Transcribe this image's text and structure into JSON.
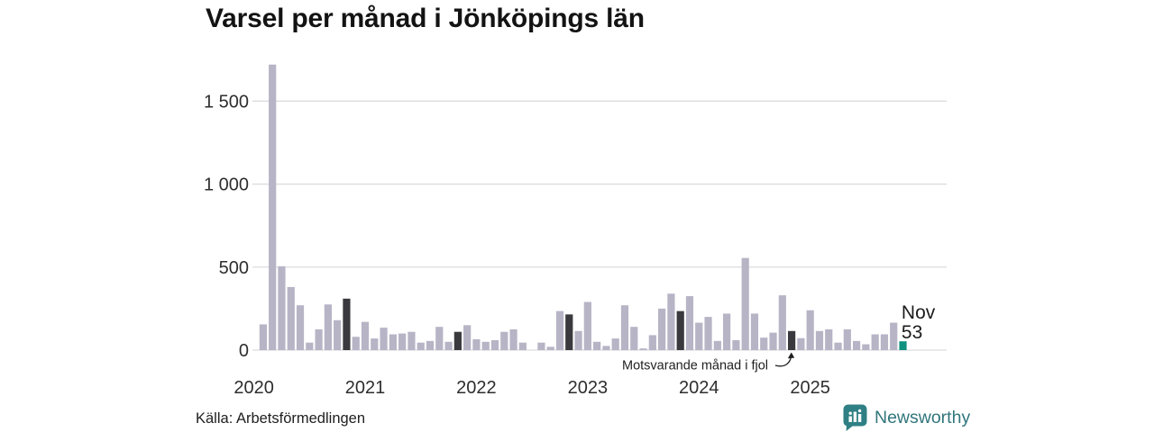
{
  "header": {
    "title": "Varsel per månad i Jönköpings län"
  },
  "footer": {
    "source": "Källa: Arbetsförmedlingen",
    "brand": "Newsworthy"
  },
  "colors": {
    "bar": "#b7b4c6",
    "bar_dark": "#3a3a3e",
    "bar_highlight": "#10917f",
    "grid": "#dcdce0",
    "axis_label": "#2e2e2e",
    "annotation": "#1f1f1f",
    "last_label": "#1b1b1b",
    "brand_teal": "#2f8084"
  },
  "chart_data": {
    "type": "bar",
    "title": "Varsel per månad i Jönköpings län",
    "xlabel": "",
    "ylabel": "",
    "ylim": [
      0,
      1750
    ],
    "grid": "horizontal",
    "yticks": [
      0,
      500,
      1000,
      1500
    ],
    "ytick_labels": [
      "0",
      "500",
      "1 000",
      "1 500"
    ],
    "year_tick_labels": [
      "2020",
      "2021",
      "2022",
      "2023",
      "2024",
      "2025"
    ],
    "months": [
      "2020-01",
      "2020-02",
      "2020-03",
      "2020-04",
      "2020-05",
      "2020-06",
      "2020-07",
      "2020-08",
      "2020-09",
      "2020-10",
      "2020-11",
      "2020-12",
      "2021-01",
      "2021-02",
      "2021-03",
      "2021-04",
      "2021-05",
      "2021-06",
      "2021-07",
      "2021-08",
      "2021-09",
      "2021-10",
      "2021-11",
      "2021-12",
      "2022-01",
      "2022-02",
      "2022-03",
      "2022-04",
      "2022-05",
      "2022-06",
      "2022-07",
      "2022-08",
      "2022-09",
      "2022-10",
      "2022-11",
      "2022-12",
      "2023-01",
      "2023-02",
      "2023-03",
      "2023-04",
      "2023-05",
      "2023-06",
      "2023-07",
      "2023-08",
      "2023-09",
      "2023-10",
      "2023-11",
      "2023-12",
      "2024-01",
      "2024-02",
      "2024-03",
      "2024-04",
      "2024-05",
      "2024-06",
      "2024-07",
      "2024-08",
      "2024-09",
      "2024-10",
      "2024-11",
      "2024-12",
      "2025-01",
      "2025-02",
      "2025-03",
      "2025-04",
      "2025-05",
      "2025-06",
      "2025-07",
      "2025-08",
      "2025-09",
      "2025-10",
      "2025-11"
    ],
    "values": [
      0,
      155,
      1720,
      505,
      380,
      270,
      45,
      125,
      275,
      180,
      310,
      80,
      170,
      70,
      135,
      95,
      100,
      110,
      45,
      55,
      140,
      50,
      110,
      150,
      65,
      50,
      60,
      110,
      125,
      45,
      0,
      45,
      20,
      235,
      215,
      115,
      290,
      50,
      25,
      70,
      270,
      140,
      10,
      90,
      250,
      340,
      235,
      325,
      165,
      200,
      55,
      220,
      60,
      555,
      220,
      75,
      105,
      330,
      115,
      72,
      240,
      115,
      125,
      45,
      125,
      55,
      35,
      95,
      95,
      165,
      53
    ],
    "bar_styles": {
      "dark_months": [
        "2020-11",
        "2021-11",
        "2022-11",
        "2023-11",
        "2024-11"
      ],
      "highlight_month": "2025-11"
    },
    "annotation": {
      "text": "Motsvarande månad i fjol",
      "target_month": "2024-11"
    },
    "last_point_label": {
      "month": "Nov",
      "value": "53"
    }
  }
}
